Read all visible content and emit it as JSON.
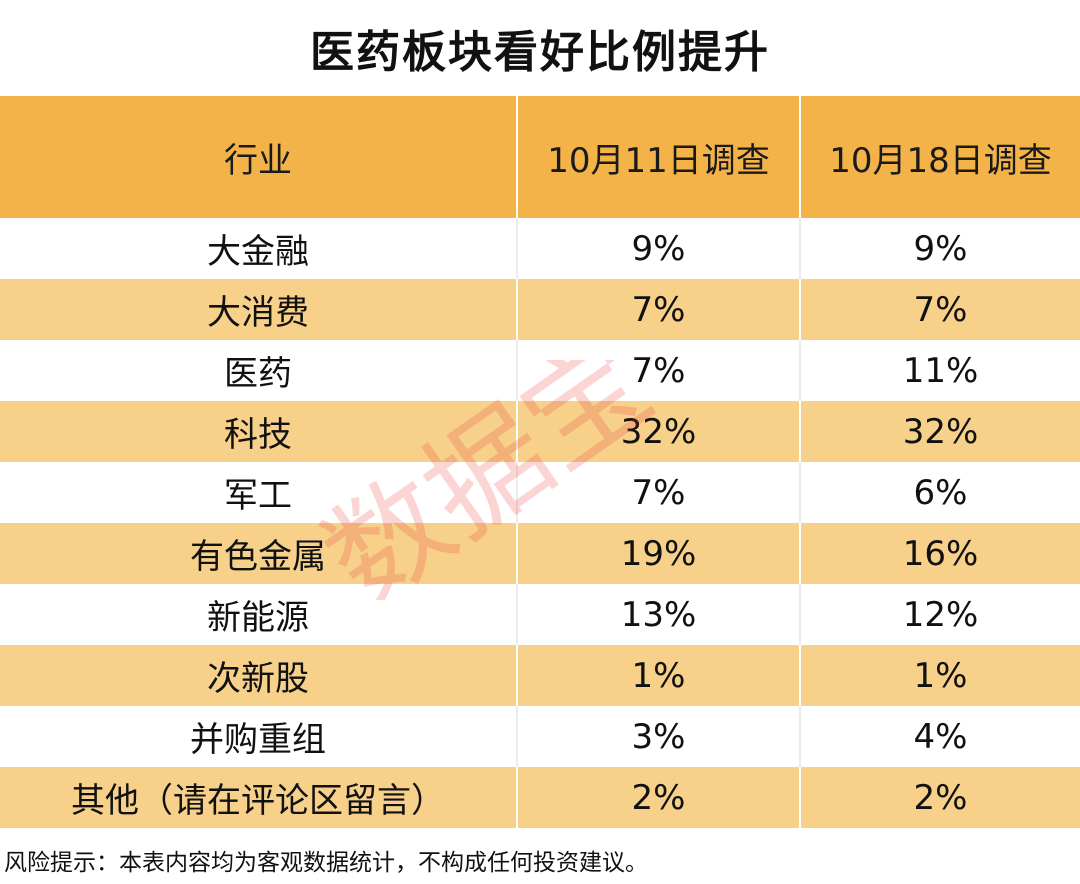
{
  "title": "医药板块看好比例提升",
  "chart_data": {
    "type": "table",
    "columns": [
      "行业",
      "10月11日调查",
      "10月18日调查"
    ],
    "rows": [
      [
        "大金融",
        "9%",
        "9%"
      ],
      [
        "大消费",
        "7%",
        "7%"
      ],
      [
        "医药",
        "7%",
        "11%"
      ],
      [
        "科技",
        "32%",
        "32%"
      ],
      [
        "军工",
        "7%",
        "6%"
      ],
      [
        "有色金属",
        "19%",
        "16%"
      ],
      [
        "新能源",
        "13%",
        "12%"
      ],
      [
        "次新股",
        "1%",
        "1%"
      ],
      [
        "并购重组",
        "3%",
        "4%"
      ],
      [
        "其他（请在评论区留言）",
        "2%",
        "2%"
      ]
    ]
  },
  "footer": "风险提示：本表内容均为客观数据统计，不构成任何投资建议。",
  "watermark": "数据宝",
  "colors": {
    "header_bg": "#f3b349",
    "stripe_bg": "#f7d08a",
    "watermark": "#e8423a"
  }
}
